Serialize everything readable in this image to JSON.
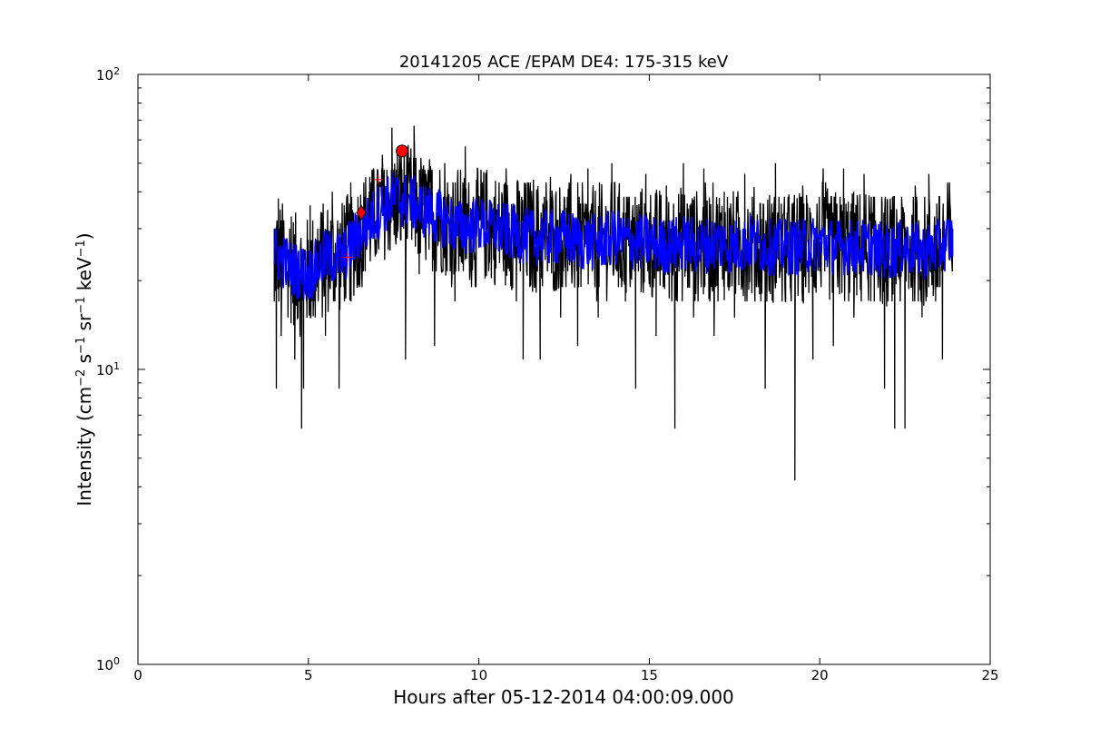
{
  "chart_data": {
    "type": "line",
    "title": "20141205 ACE /EPAM DE4: 175-315 keV",
    "xlabel": "Hours after 05-12-2014 04:00:09.000",
    "ylabel": {
      "prefix": "Intensity (cm",
      "sup1": "−2",
      "part2": " s",
      "sup2": "−1",
      "part3": " sr",
      "sup3": "−1",
      "part4": " keV",
      "sup4": "−1",
      "suffix": ")"
    },
    "xlim": [
      0,
      25
    ],
    "ylim": [
      1,
      100
    ],
    "yscale": "log",
    "grid": false,
    "x_ticks": [
      {
        "value": 0,
        "label": "0"
      },
      {
        "value": 5,
        "label": "5"
      },
      {
        "value": 10,
        "label": "10"
      },
      {
        "value": 15,
        "label": "15"
      },
      {
        "value": 20,
        "label": "20"
      },
      {
        "value": 25,
        "label": "25"
      }
    ],
    "y_ticks": [
      {
        "value": 1,
        "base": "10",
        "exp": "0"
      },
      {
        "value": 10,
        "base": "10",
        "exp": "1"
      },
      {
        "value": 100,
        "base": "10",
        "exp": "2"
      }
    ],
    "series": [
      {
        "style": "raw",
        "color": "#000000",
        "x_start": 4.0,
        "x_end": 23.9,
        "points": [
          [
            4.0,
            17
          ],
          [
            4.06,
            8.6
          ],
          [
            4.12,
            38
          ],
          [
            4.2,
            13
          ],
          [
            4.3,
            27
          ],
          [
            4.4,
            15
          ],
          [
            4.5,
            33
          ],
          [
            4.6,
            10.8
          ],
          [
            4.7,
            25
          ],
          [
            4.8,
            6.3
          ],
          [
            4.86,
            8.6
          ],
          [
            4.95,
            20
          ],
          [
            5.05,
            36
          ],
          [
            5.2,
            15
          ],
          [
            5.35,
            30
          ],
          [
            5.5,
            13
          ],
          [
            5.7,
            40
          ],
          [
            5.9,
            8.6
          ],
          [
            6.05,
            36
          ],
          [
            6.25,
            17
          ],
          [
            6.45,
            20
          ],
          [
            6.6,
            34
          ],
          [
            6.8,
            45
          ],
          [
            7.0,
            25
          ],
          [
            7.15,
            48
          ],
          [
            7.3,
            30
          ],
          [
            7.45,
            66
          ],
          [
            7.6,
            28
          ],
          [
            7.72,
            55
          ],
          [
            7.85,
            10.8
          ],
          [
            7.95,
            50
          ],
          [
            8.1,
            67
          ],
          [
            8.25,
            21
          ],
          [
            8.45,
            46
          ],
          [
            8.7,
            12
          ],
          [
            9.0,
            50
          ],
          [
            9.3,
            17
          ],
          [
            9.6,
            57
          ],
          [
            9.9,
            19
          ],
          [
            10.2,
            46
          ],
          [
            10.5,
            22
          ],
          [
            10.8,
            48
          ],
          [
            11.1,
            17
          ],
          [
            11.3,
            10.8
          ],
          [
            11.6,
            44
          ],
          [
            11.8,
            10.8
          ],
          [
            12.1,
            45
          ],
          [
            12.4,
            15
          ],
          [
            12.7,
            46
          ],
          [
            12.9,
            12
          ],
          [
            13.2,
            48
          ],
          [
            13.5,
            15
          ],
          [
            13.9,
            50
          ],
          [
            14.3,
            17
          ],
          [
            14.6,
            8.6
          ],
          [
            14.9,
            46
          ],
          [
            15.2,
            13
          ],
          [
            15.5,
            42
          ],
          [
            15.75,
            6.3
          ],
          [
            16.0,
            50
          ],
          [
            16.3,
            15
          ],
          [
            16.6,
            48
          ],
          [
            16.9,
            13
          ],
          [
            17.2,
            40
          ],
          [
            17.5,
            15
          ],
          [
            17.8,
            46
          ],
          [
            18.1,
            17
          ],
          [
            18.4,
            8.6
          ],
          [
            18.7,
            50
          ],
          [
            19.0,
            17
          ],
          [
            19.27,
            4.2
          ],
          [
            19.5,
            42
          ],
          [
            19.8,
            10.8
          ],
          [
            20.1,
            48
          ],
          [
            20.4,
            12
          ],
          [
            20.7,
            48
          ],
          [
            21.0,
            15
          ],
          [
            21.3,
            46
          ],
          [
            21.6,
            17
          ],
          [
            21.9,
            8.6
          ],
          [
            22.2,
            6.3
          ],
          [
            22.5,
            6.3
          ],
          [
            22.8,
            42
          ],
          [
            23.0,
            15
          ],
          [
            23.2,
            46
          ],
          [
            23.4,
            17
          ],
          [
            23.6,
            10.8
          ],
          [
            23.9,
            30
          ]
        ]
      },
      {
        "style": "smoothed",
        "color": "#0000ff",
        "x_start": 4.0,
        "x_end": 23.9,
        "points": [
          [
            4.0,
            25
          ],
          [
            4.5,
            22
          ],
          [
            5.0,
            21
          ],
          [
            5.5,
            24
          ],
          [
            6.0,
            24
          ],
          [
            6.5,
            29
          ],
          [
            7.0,
            34
          ],
          [
            7.5,
            38
          ],
          [
            8.0,
            37
          ],
          [
            8.5,
            34
          ],
          [
            9.0,
            32
          ],
          [
            9.5,
            30
          ],
          [
            10.0,
            31
          ],
          [
            10.5,
            30
          ],
          [
            11.0,
            29
          ],
          [
            11.5,
            28
          ],
          [
            12.0,
            28
          ],
          [
            12.5,
            28
          ],
          [
            13.0,
            27
          ],
          [
            13.5,
            27
          ],
          [
            14.0,
            28
          ],
          [
            14.5,
            27
          ],
          [
            15.0,
            27
          ],
          [
            15.5,
            26
          ],
          [
            16.0,
            27
          ],
          [
            16.5,
            26
          ],
          [
            17.0,
            27
          ],
          [
            17.5,
            26
          ],
          [
            18.0,
            27
          ],
          [
            18.5,
            26
          ],
          [
            19.0,
            26
          ],
          [
            19.5,
            26
          ],
          [
            20.0,
            27
          ],
          [
            20.5,
            26
          ],
          [
            21.0,
            26
          ],
          [
            21.5,
            26
          ],
          [
            22.0,
            25
          ],
          [
            22.5,
            26
          ],
          [
            23.0,
            25
          ],
          [
            23.5,
            26
          ],
          [
            23.9,
            28
          ]
        ]
      }
    ],
    "markers": [
      {
        "shape": "diamond",
        "x": 6.55,
        "y": 34,
        "color": "#ff0000"
      },
      {
        "shape": "circle",
        "x": 7.75,
        "y": 55,
        "color": "#ff0000"
      },
      {
        "shape": "plus",
        "x": 7.05,
        "y": 44,
        "color": "#ff0000"
      },
      {
        "shape": "plus",
        "x": 6.15,
        "y": 24,
        "color": "#ff0000"
      }
    ]
  }
}
